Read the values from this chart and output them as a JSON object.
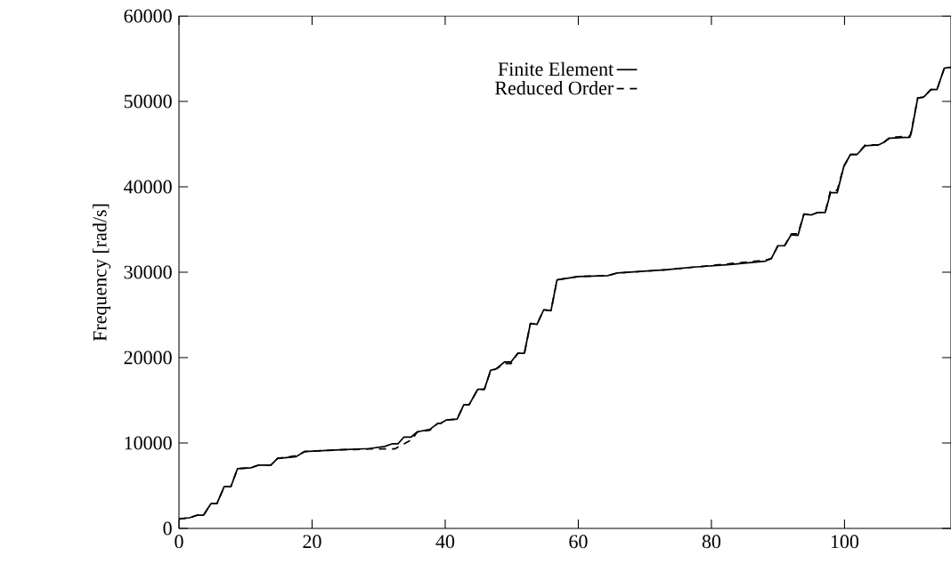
{
  "chart_data": {
    "type": "line",
    "ylabel": "Frequency [rad/s]",
    "xlim": [
      0,
      116
    ],
    "ylim": [
      0,
      60000
    ],
    "xticks": [
      0,
      20,
      40,
      60,
      80,
      100
    ],
    "yticks": [
      0,
      10000,
      20000,
      30000,
      40000,
      50000,
      60000
    ],
    "legend": "top",
    "series": [
      {
        "name": "Finite Element",
        "color": "#000000",
        "line_style": "solid",
        "x": [
          0,
          1.6,
          2.8,
          3.7,
          4.8,
          5.7,
          6.8,
          7.8,
          8.8,
          10.8,
          11.9,
          13.8,
          14.8,
          17.6,
          18.9,
          21.5,
          24.2,
          28.6,
          30.9,
          32,
          32.9,
          33.8,
          34.9,
          35.8,
          37.7,
          38.9,
          39.3,
          40.2,
          41.8,
          42.8,
          43.6,
          44.9,
          45.9,
          46.8,
          47.7,
          48.9,
          49.9,
          50.9,
          51.9,
          52.8,
          53.8,
          54.8,
          55.9,
          56.8,
          60,
          64.4,
          65.8,
          73.4,
          77.4,
          82.8,
          88.1,
          89,
          90,
          91,
          92,
          93,
          93.9,
          95,
          96,
          97.1,
          97.9,
          98.9,
          99.9,
          100.9,
          101.9,
          103.1,
          105.1,
          105.9,
          106.8,
          109.8,
          110,
          111,
          111.9,
          113,
          113.9,
          115,
          116
        ],
        "values": [
          1100,
          1250,
          1560,
          1560,
          2900,
          2900,
          4900,
          4900,
          7000,
          7100,
          7400,
          7400,
          8200,
          8400,
          9000,
          9100,
          9200,
          9350,
          9600,
          9900,
          9900,
          10700,
          10700,
          11300,
          11600,
          12300,
          12300,
          12700,
          12800,
          14500,
          14500,
          16300,
          16300,
          18500,
          18700,
          19500,
          19500,
          20500,
          20500,
          24000,
          23900,
          25600,
          25500,
          29100,
          29500,
          29600,
          29900,
          30300,
          30600,
          30900,
          31300,
          31600,
          33100,
          33100,
          34400,
          34300,
          36800,
          36700,
          37000,
          37000,
          39300,
          39300,
          42400,
          43800,
          43800,
          44800,
          44900,
          45200,
          45700,
          45800,
          46200,
          50400,
          50500,
          51400,
          51400,
          53900,
          54000
        ]
      },
      {
        "name": "Reduced Order",
        "color": "#000000",
        "line_style": "dashed",
        "x": [
          0,
          1.6,
          2.8,
          3.7,
          4.8,
          5.7,
          6.8,
          7.8,
          8.8,
          10.8,
          11.9,
          13.8,
          14.8,
          17.6,
          18.9,
          21.5,
          24.2,
          28.6,
          30.6,
          32.4,
          33.8,
          35,
          35.8,
          37.7,
          38.9,
          39.3,
          40.2,
          41.8,
          42.8,
          43.6,
          44.9,
          45.9,
          46.8,
          47.7,
          48.9,
          49.9,
          50.9,
          51.9,
          52.8,
          53.8,
          54.8,
          55.9,
          56.8,
          60,
          64.4,
          65.8,
          73.4,
          77.4,
          82.8,
          88.1,
          89,
          90,
          91,
          92,
          93,
          93.9,
          95,
          96,
          97.1,
          97.9,
          98.9,
          99.9,
          100.9,
          101.9,
          103.1,
          105.1,
          105.9,
          106.8,
          109.8,
          110,
          111,
          111.9,
          113,
          113.9,
          115,
          116
        ],
        "values": [
          1100,
          1250,
          1560,
          1560,
          2900,
          2900,
          4900,
          4900,
          7000,
          7100,
          7400,
          7400,
          8200,
          8500,
          9000,
          9100,
          9200,
          9300,
          9300,
          9300,
          9900,
          10400,
          11300,
          11500,
          12300,
          12300,
          12700,
          12800,
          14500,
          14500,
          16300,
          16300,
          18400,
          18700,
          19300,
          19300,
          20500,
          20500,
          24000,
          23900,
          25600,
          25500,
          29100,
          29500,
          29600,
          29900,
          30300,
          30600,
          31000,
          31400,
          31600,
          33100,
          33100,
          34500,
          34500,
          36800,
          36700,
          37000,
          37000,
          39600,
          39600,
          42400,
          43800,
          43800,
          44900,
          44900,
          45200,
          45800,
          45900,
          46400,
          50400,
          50500,
          51400,
          51400,
          53900,
          54000
        ]
      }
    ]
  }
}
